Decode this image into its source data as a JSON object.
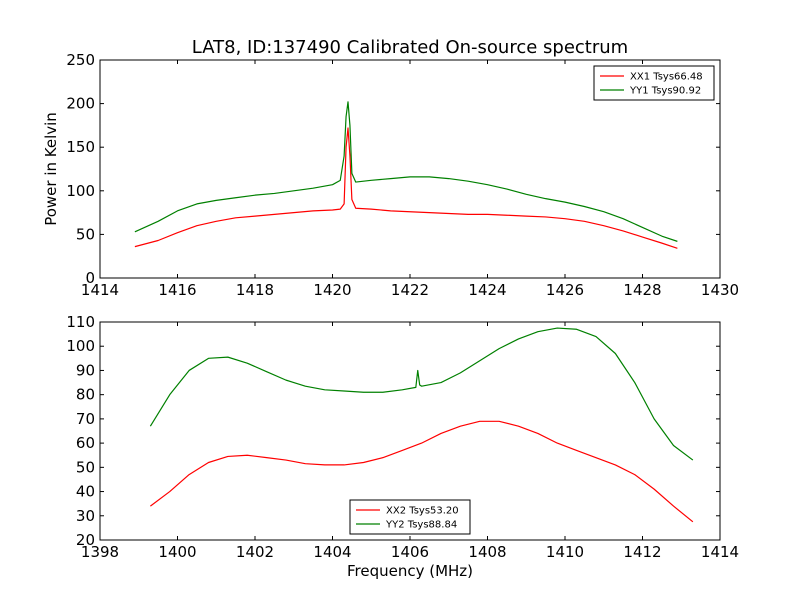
{
  "title": "LAT8, ID:137490 Calibrated On-source spectrum",
  "chart_data": [
    {
      "type": "line",
      "title": "LAT8, ID:137490 Calibrated On-source spectrum",
      "xlabel": "",
      "ylabel": "Power in Kelvin",
      "xlim": [
        1414,
        1430
      ],
      "ylim": [
        0,
        250
      ],
      "xticks": [
        1414,
        1416,
        1418,
        1420,
        1422,
        1424,
        1426,
        1428,
        1430
      ],
      "yticks": [
        0,
        50,
        100,
        150,
        200,
        250
      ],
      "grid": false,
      "legend_position": "top-right",
      "series": [
        {
          "name": "XX1 Tsys66.48",
          "color": "#ff0000",
          "x": [
            1414.9,
            1415.5,
            1416,
            1416.5,
            1417,
            1417.5,
            1418,
            1418.5,
            1419,
            1419.5,
            1420,
            1420.2,
            1420.3,
            1420.35,
            1420.4,
            1420.45,
            1420.5,
            1420.6,
            1421,
            1421.5,
            1422,
            1422.5,
            1423,
            1423.5,
            1424,
            1424.5,
            1425,
            1425.5,
            1426,
            1426.5,
            1427,
            1427.5,
            1428,
            1428.5,
            1428.9
          ],
          "y": [
            36,
            43,
            52,
            60,
            65,
            69,
            71,
            73,
            75,
            77,
            78,
            79,
            85,
            150,
            172,
            140,
            90,
            80,
            79,
            77,
            76,
            75,
            74,
            73,
            73,
            72,
            71,
            70,
            68,
            65,
            60,
            54,
            47,
            40,
            34
          ]
        },
        {
          "name": "YY1 Tsys90.92",
          "color": "#008000",
          "x": [
            1414.9,
            1415.5,
            1416,
            1416.5,
            1417,
            1417.5,
            1418,
            1418.5,
            1419,
            1419.5,
            1420,
            1420.2,
            1420.3,
            1420.35,
            1420.4,
            1420.45,
            1420.5,
            1420.6,
            1421,
            1421.5,
            1422,
            1422.5,
            1423,
            1423.5,
            1424,
            1424.5,
            1425,
            1425.5,
            1426,
            1426.5,
            1427,
            1427.5,
            1428,
            1428.5,
            1428.9
          ],
          "y": [
            53,
            65,
            77,
            85,
            89,
            92,
            95,
            97,
            100,
            103,
            107,
            112,
            140,
            185,
            202,
            175,
            120,
            110,
            112,
            114,
            116,
            116,
            114,
            111,
            107,
            102,
            96,
            91,
            87,
            82,
            76,
            68,
            58,
            48,
            42
          ]
        }
      ]
    },
    {
      "type": "line",
      "title": "",
      "xlabel": "Frequency (MHz)",
      "ylabel": "",
      "xlim": [
        1398,
        1414
      ],
      "ylim": [
        20,
        110
      ],
      "xticks": [
        1398,
        1400,
        1402,
        1404,
        1406,
        1408,
        1410,
        1412,
        1414
      ],
      "yticks": [
        20,
        30,
        40,
        50,
        60,
        70,
        80,
        90,
        100,
        110
      ],
      "grid": false,
      "legend_position": "bottom-center",
      "series": [
        {
          "name": "XX2 Tsys53.20",
          "color": "#ff0000",
          "x": [
            1399.3,
            1399.8,
            1400.3,
            1400.8,
            1401.3,
            1401.8,
            1402.3,
            1402.8,
            1403.3,
            1403.8,
            1404.3,
            1404.8,
            1405.3,
            1405.8,
            1406.3,
            1406.8,
            1407.3,
            1407.8,
            1408.3,
            1408.8,
            1409.3,
            1409.8,
            1410.3,
            1410.8,
            1411.3,
            1411.8,
            1412.3,
            1412.8,
            1413.3
          ],
          "y": [
            34,
            40,
            47,
            52,
            54.5,
            55,
            54,
            53,
            51.5,
            51,
            51,
            52,
            54,
            57,
            60,
            64,
            67,
            69,
            69,
            67,
            64,
            60,
            57,
            54,
            51,
            47,
            41,
            34,
            27.5
          ]
        },
        {
          "name": "YY2 Tsys88.84",
          "color": "#008000",
          "x": [
            1399.3,
            1399.8,
            1400.3,
            1400.8,
            1401.3,
            1401.8,
            1402.3,
            1402.8,
            1403.3,
            1403.8,
            1404.3,
            1404.8,
            1405.3,
            1405.8,
            1406.15,
            1406.2,
            1406.25,
            1406.3,
            1406.8,
            1407.3,
            1407.8,
            1408.3,
            1408.8,
            1409.3,
            1409.8,
            1410.3,
            1410.8,
            1411.3,
            1411.8,
            1412.3,
            1412.8,
            1413.3
          ],
          "y": [
            67,
            80,
            90,
            95,
            95.5,
            93,
            89.5,
            86,
            83.5,
            82,
            81.5,
            81,
            81,
            82,
            83,
            90,
            84,
            83.5,
            85,
            89,
            94,
            99,
            103,
            106,
            107.5,
            107,
            104,
            97,
            85,
            70,
            59,
            53
          ]
        }
      ]
    }
  ]
}
